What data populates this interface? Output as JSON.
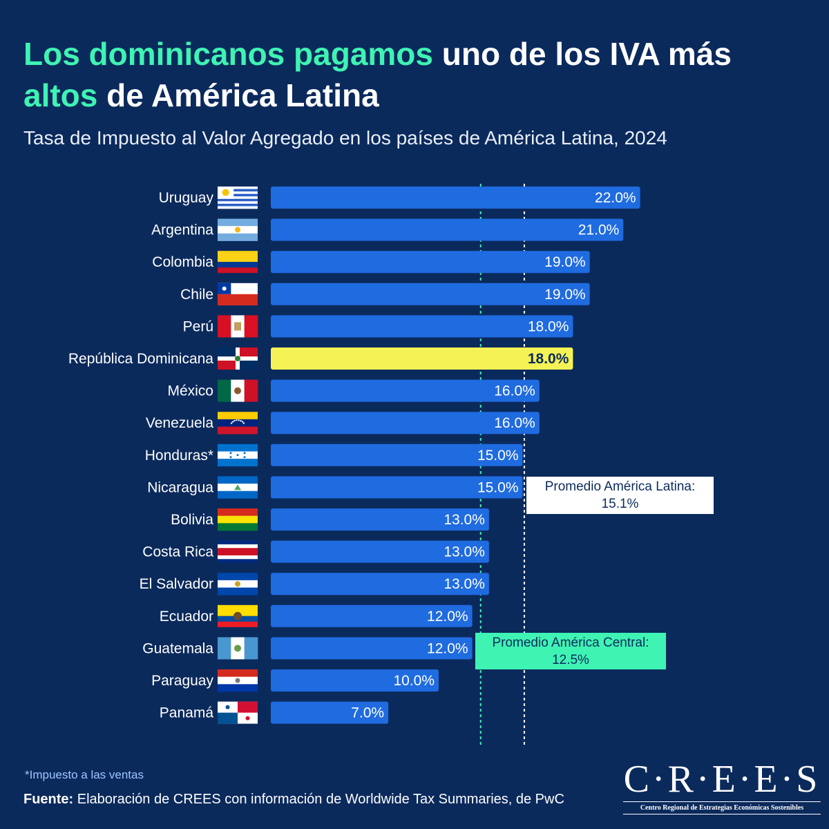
{
  "header": {
    "title_hl1": "Los dominicanos pagamos",
    "title_mid": " uno de los IVA más ",
    "title_hl2": "altos",
    "title_end": " de América Latina",
    "subtitle": "Tasa de Impuesto al Valor Agregado en los países de América Latina, 2024"
  },
  "colors": {
    "bar": "#1f6be0",
    "highlight": "#f5f255",
    "background": "#0b2a5c",
    "accent": "#3ff3b3",
    "latam_line": "#ffffff",
    "central_line": "#3ff3b3"
  },
  "chart_data": {
    "type": "bar",
    "orientation": "horizontal",
    "categories": [
      "Uruguay",
      "Argentina",
      "Colombia",
      "Chile",
      "Perú",
      "República Dominicana",
      "México",
      "Venezuela",
      "Honduras*",
      "Nicaragua",
      "Bolivia",
      "Costa Rica",
      "El Salvador",
      "Ecuador",
      "Guatemala",
      "Paraguay",
      "Panamá"
    ],
    "values": [
      22.0,
      21.0,
      19.0,
      19.0,
      18.0,
      18.0,
      16.0,
      16.0,
      15.0,
      15.0,
      13.0,
      13.0,
      13.0,
      12.0,
      12.0,
      10.0,
      7.0
    ],
    "value_labels": [
      "22.0%",
      "21.0%",
      "19.0%",
      "19.0%",
      "18.0%",
      "18.0%",
      "16.0%",
      "16.0%",
      "15.0%",
      "15.0%",
      "13.0%",
      "13.0%",
      "13.0%",
      "12.0%",
      "12.0%",
      "10.0%",
      "7.0%"
    ],
    "highlight": "República Dominicana",
    "xlim": [
      0,
      22
    ],
    "reference_lines": [
      {
        "label": "Promedio América Latina:",
        "value_label": "15.1%",
        "value": 15.1
      },
      {
        "label": "Promedio América Central:",
        "value_label": "12.5%",
        "value": 12.5
      }
    ]
  },
  "flags": [
    "uruguay-flag",
    "argentina-flag",
    "colombia-flag",
    "chile-flag",
    "peru-flag",
    "dominican-republic-flag",
    "mexico-flag",
    "venezuela-flag",
    "honduras-flag",
    "nicaragua-flag",
    "bolivia-flag",
    "costa-rica-flag",
    "el-salvador-flag",
    "ecuador-flag",
    "guatemala-flag",
    "paraguay-flag",
    "panama-flag"
  ],
  "footer": {
    "footnote": "*Impuesto a las ventas",
    "source_label": "Fuente:",
    "source_text": " Elaboración de CREES con información de Worldwide Tax Summaries, de PwC"
  },
  "logo": {
    "wordmark": "C·R·E·E·S",
    "tagline": "Centro Regional de Estrategias Económicas Sostenibles"
  }
}
